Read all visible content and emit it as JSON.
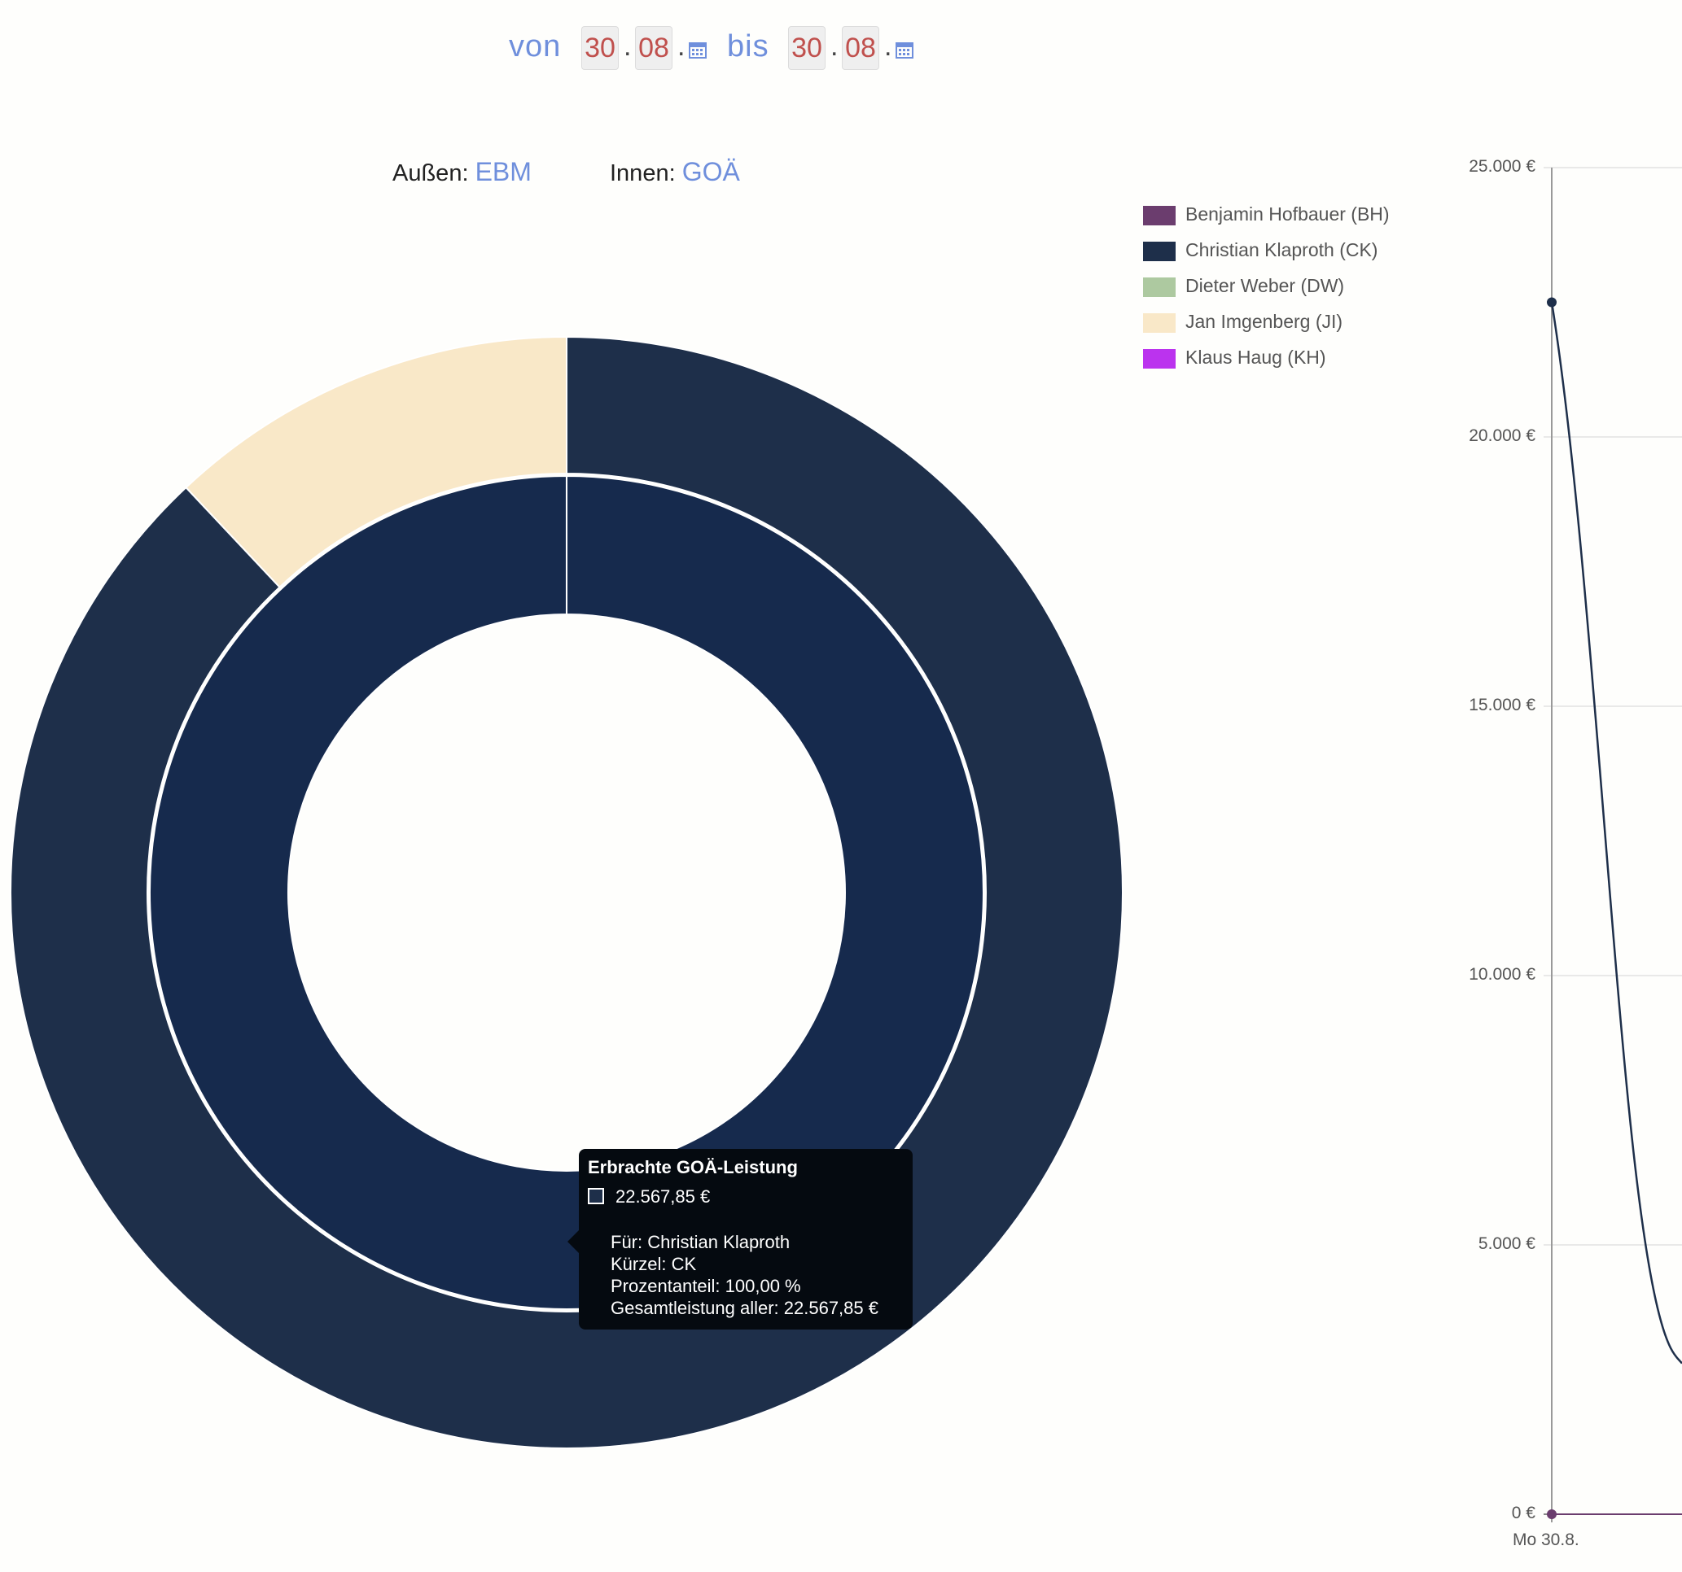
{
  "date_filter": {
    "from_label": "von",
    "to_label": "bis",
    "from_day": "30",
    "from_month": "08",
    "to_day": "30",
    "to_month": "08",
    "separator": "."
  },
  "rings": {
    "outer_label": "Außen:",
    "outer_value": "EBM",
    "inner_label": "Innen:",
    "inner_value": "GOÄ"
  },
  "legend": [
    {
      "name": "Benjamin Hofbauer (BH)",
      "color": "#6b3d6e"
    },
    {
      "name": "Christian Klaproth (CK)",
      "color": "#1e2f4a"
    },
    {
      "name": "Dieter Weber (DW)",
      "color": "#adc9a0"
    },
    {
      "name": "Jan Imgenberg (JI)",
      "color": "#f9e8c8"
    },
    {
      "name": "Klaus Haug (KH)",
      "color": "#bb33ee"
    }
  ],
  "tooltip": {
    "title": "Erbrachte GOÄ-Leistung",
    "value": "22.567,85 €",
    "line1": "Für: Christian Klaproth",
    "line2": "Kürzel: CK",
    "line3": "Prozentanteil: 100,00 %",
    "line4": "Gesamtleistung aller: 22.567,85 €"
  },
  "chart_data": [
    {
      "type": "pie",
      "ring": "outer",
      "labels": [
        "Christian Klaproth (CK)",
        "Jan Imgenberg (JI)"
      ],
      "values": [
        88,
        12
      ],
      "colors": [
        "#1e2f4a",
        "#f9e8c8"
      ]
    },
    {
      "type": "pie",
      "ring": "inner",
      "labels": [
        "Christian Klaproth (CK)"
      ],
      "values": [
        22567.85
      ],
      "colors": [
        "#162a4d"
      ]
    },
    {
      "type": "line",
      "x": [
        "Mo 30.8."
      ],
      "y_ticks": [
        "0 €",
        "5.000 €",
        "10.000 €",
        "15.000 €",
        "20.000 €",
        "25.000 €"
      ],
      "ylim": [
        0,
        25000
      ],
      "series": [
        {
          "name": "Christian Klaproth (CK)",
          "color": "#1e2f4a",
          "values": [
            22500
          ]
        },
        {
          "name": "Benjamin Hofbauer (BH)",
          "color": "#6b3d6e",
          "values": [
            0
          ]
        }
      ]
    }
  ]
}
